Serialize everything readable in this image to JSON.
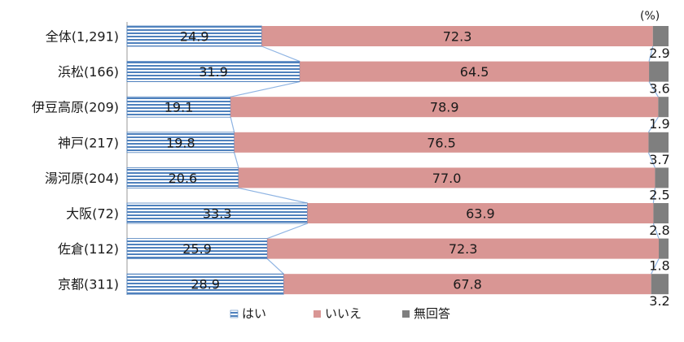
{
  "chart_data": {
    "type": "bar",
    "stacked": true,
    "orientation": "horizontal",
    "normalized_percent": true,
    "unit_label": "(%)",
    "categories": [
      "全体(1,291)",
      "浜松(166)",
      "伊豆高原(209)",
      "神戸(217)",
      "湯河原(204)",
      "大阪(72)",
      "佐倉(112)",
      "京都(311)"
    ],
    "series": [
      {
        "name": "はい",
        "values": [
          24.9,
          31.9,
          19.1,
          19.8,
          20.6,
          33.3,
          25.9,
          28.9
        ],
        "color": "#4f81bd"
      },
      {
        "name": "いいえ",
        "values": [
          72.3,
          64.5,
          78.9,
          76.5,
          77.0,
          63.9,
          72.3,
          67.8
        ],
        "color": "#d99694"
      },
      {
        "name": "無回答",
        "values": [
          2.9,
          3.6,
          1.9,
          3.7,
          2.5,
          2.8,
          1.8,
          3.2
        ],
        "color": "#7f7f7f"
      }
    ],
    "value_labels": {
      "はい": [
        "24.9",
        "31.9",
        "19.1",
        "19.8",
        "20.6",
        "33.3",
        "25.9",
        "28.9"
      ],
      "いいえ": [
        "72.3",
        "64.5",
        "78.9",
        "76.5",
        "77.0",
        "63.9",
        "72.3",
        "67.8"
      ],
      "無回答": [
        "2.9",
        "3.6",
        "1.9",
        "3.7",
        "2.5",
        "2.8",
        "1.8",
        "3.2"
      ]
    },
    "series_lines": true,
    "grid": false,
    "legend_position": "bottom"
  }
}
